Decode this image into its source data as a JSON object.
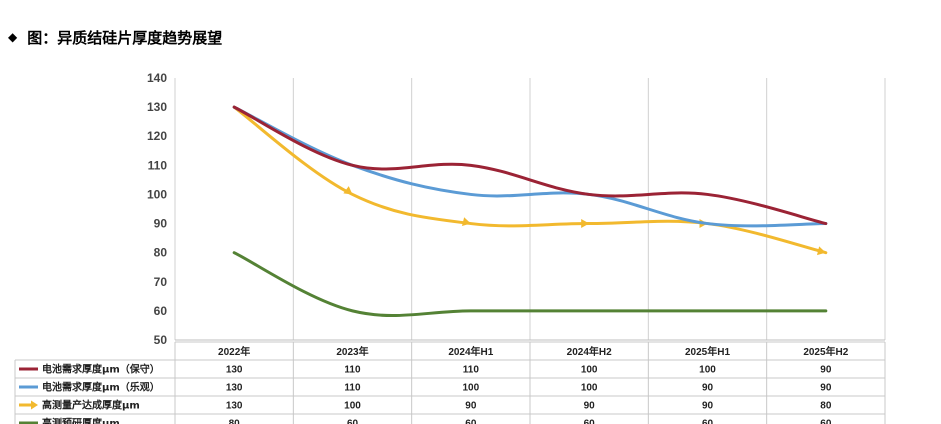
{
  "heading": {
    "bullet": "◆",
    "title": "图：异质结硅片厚度趋势展望"
  },
  "chart_data": {
    "type": "line",
    "title": "",
    "xlabel": "",
    "ylabel": "",
    "categories": [
      "2022年",
      "2023年",
      "2024年H1",
      "2024年H2",
      "2025年H1",
      "2025年H2"
    ],
    "ylim": [
      50,
      140
    ],
    "yticks": [
      50,
      60,
      70,
      80,
      90,
      100,
      110,
      120,
      130,
      140
    ],
    "grid": "vertical",
    "legend": "data table below chart",
    "series": [
      {
        "name": "电池需求厚度μm（保守）",
        "color": "#9b2335",
        "marker": "none",
        "values": [
          130,
          110,
          110,
          100,
          100,
          90
        ]
      },
      {
        "name": "电池需求厚度μm（乐观）",
        "color": "#5b9bd5",
        "marker": "none",
        "values": [
          130,
          110,
          100,
          100,
          90,
          90
        ]
      },
      {
        "name": "高测量产达成厚度μm",
        "color": "#f2b92e",
        "marker": "arrow",
        "values": [
          130,
          100,
          90,
          90,
          90,
          80
        ]
      },
      {
        "name": "高测预研厚度μm",
        "color": "#548235",
        "marker": "none",
        "values": [
          80,
          60,
          60,
          60,
          60,
          60
        ]
      }
    ]
  }
}
